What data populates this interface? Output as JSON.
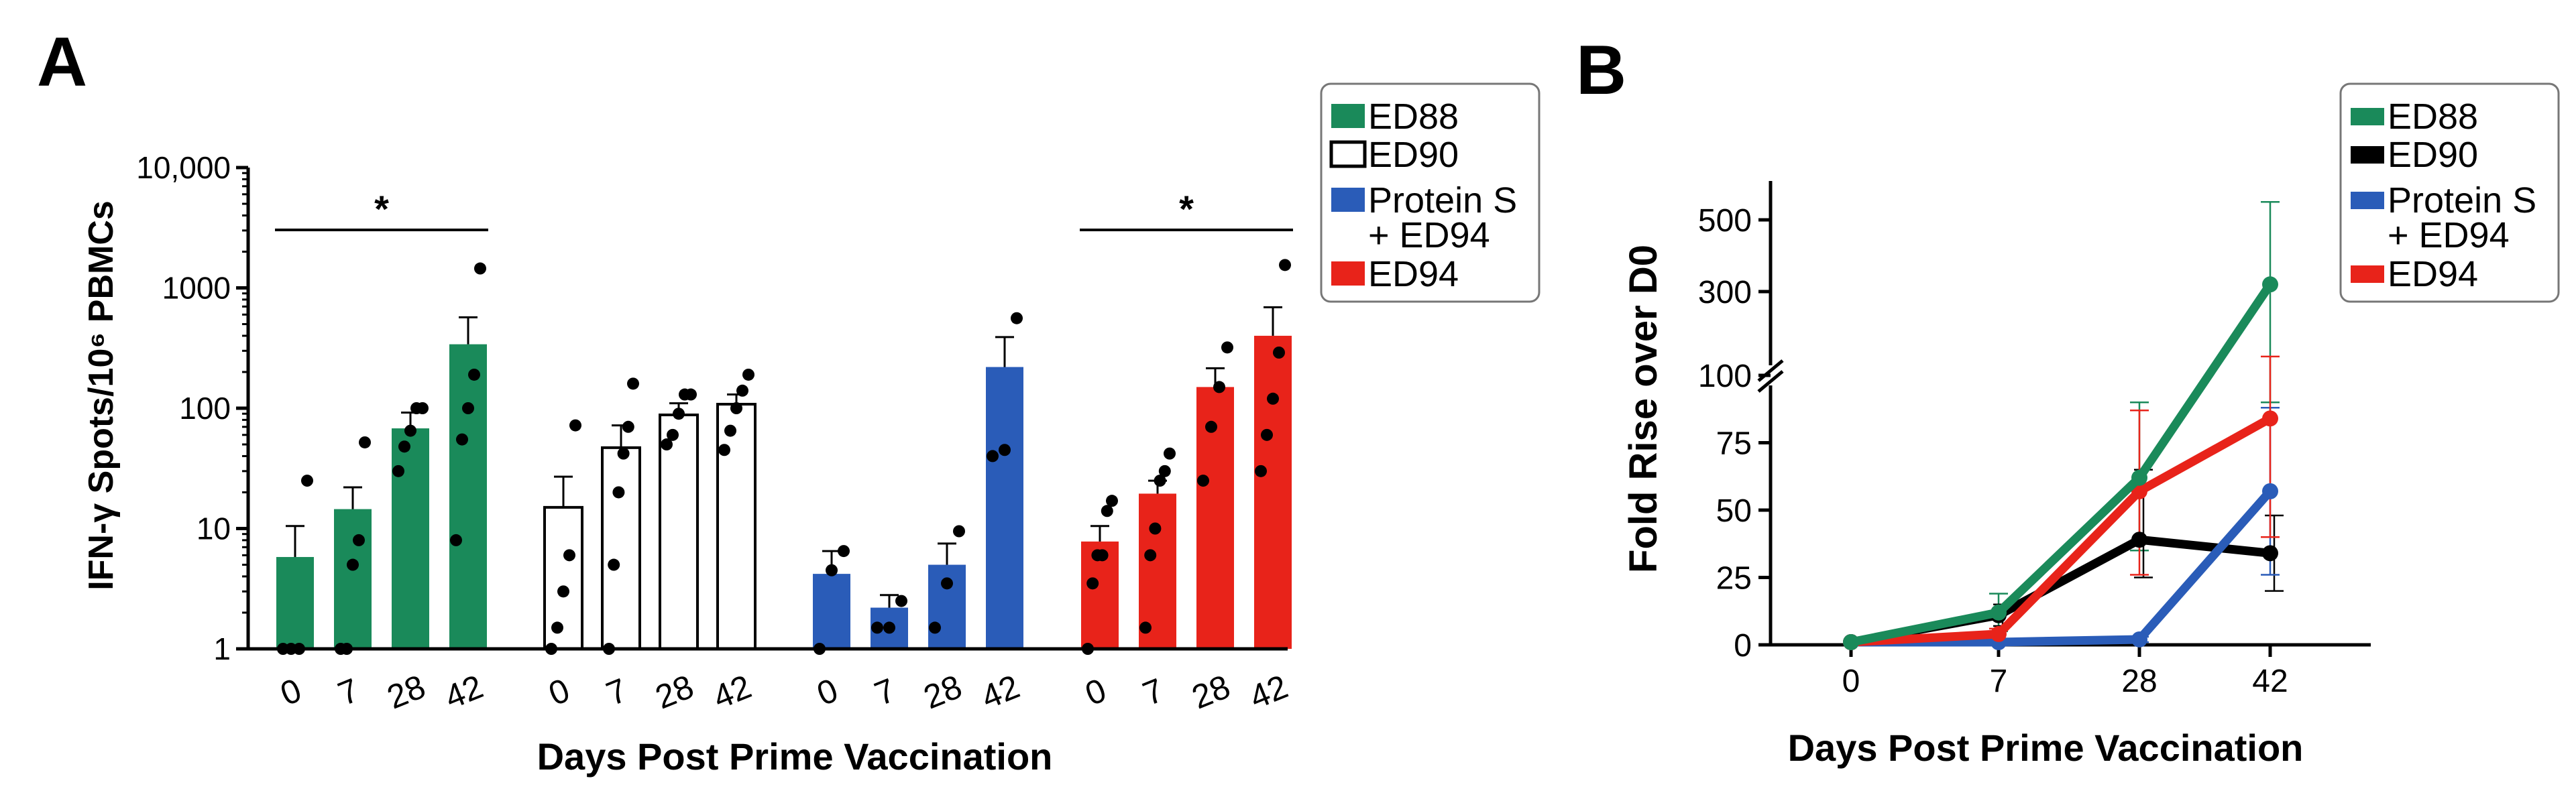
{
  "figure": {
    "panel_a_label": "A",
    "panel_b_label": "B",
    "legend_items": [
      {
        "label_lines": [
          "ED88"
        ],
        "color": "#1a8a5a",
        "fill": true
      },
      {
        "label_lines": [
          "ED90"
        ],
        "color": "#000000",
        "fill": false
      },
      {
        "label_lines": [
          "Protein S",
          "+ ED94"
        ],
        "color": "#2a5cb8",
        "fill": true
      },
      {
        "label_lines": [
          "ED94"
        ],
        "color": "#e8231a",
        "fill": true
      }
    ],
    "legend_items_b": [
      {
        "label_lines": [
          "ED88"
        ],
        "color": "#1a8a5a"
      },
      {
        "label_lines": [
          "ED90"
        ],
        "color": "#000000"
      },
      {
        "label_lines": [
          "Protein S",
          "+ ED94"
        ],
        "color": "#2a5cb8"
      },
      {
        "label_lines": [
          "ED94"
        ],
        "color": "#e8231a"
      }
    ]
  },
  "chart_data": [
    {
      "panel": "A",
      "type": "bar",
      "scale": "log",
      "ylabel": "IFN-γ Spots/10⁶ PBMCs",
      "xlabel": "Days Post Prime Vaccination",
      "ylim": [
        1,
        10000
      ],
      "yticks": [
        1,
        10,
        100,
        1000,
        10000
      ],
      "ytick_labels": [
        "1",
        "10",
        "100",
        "1000",
        "10,000"
      ],
      "categories": [
        "0",
        "7",
        "28",
        "42"
      ],
      "significance": [
        {
          "group": "ED88",
          "from": "0",
          "to": "42",
          "label": "*"
        },
        {
          "group": "ED94",
          "from": "0",
          "to": "42",
          "label": "*"
        }
      ],
      "series": [
        {
          "name": "ED88",
          "color": "#1a8a5a",
          "fill": true,
          "values": [
            5.8,
            14.5,
            68,
            340
          ],
          "errors": [
            10.5,
            22,
            92,
            570
          ],
          "points": [
            [
              1,
              1,
              1,
              25
            ],
            [
              1,
              1,
              5,
              8,
              52
            ],
            [
              30,
              48,
              65,
              100,
              100
            ],
            [
              8,
              55,
              100,
              190,
              1450
            ]
          ]
        },
        {
          "name": "ED90",
          "color": "#000000",
          "fill": false,
          "values": [
            15,
            47,
            88,
            108
          ],
          "errors": [
            27,
            72,
            110,
            130
          ],
          "points": [
            [
              1,
              1.5,
              3,
              6,
              72
            ],
            [
              1,
              5,
              20,
              42,
              70,
              160
            ],
            [
              50,
              60,
              90,
              130,
              130
            ],
            [
              45,
              65,
              100,
              140,
              190
            ]
          ]
        },
        {
          "name": "Protein S + ED94",
          "color": "#2a5cb8",
          "fill": true,
          "values": [
            4.2,
            2.2,
            5.0,
            220
          ],
          "errors": [
            6.5,
            2.8,
            7.5,
            390
          ],
          "points": [
            [
              1,
              4.5,
              6.5
            ],
            [
              1.5,
              1.5,
              2.5
            ],
            [
              1.5,
              3.5,
              9.5
            ],
            [
              40,
              45,
              560
            ]
          ]
        },
        {
          "name": "ED94",
          "color": "#e8231a",
          "fill": true,
          "values": [
            7.8,
            19.5,
            150,
            400
          ],
          "errors": [
            10.5,
            25,
            215,
            690
          ],
          "points": [
            [
              1,
              3.5,
              6,
              6,
              14,
              17
            ],
            [
              1.5,
              6,
              10,
              25,
              30,
              42
            ],
            [
              25,
              70,
              150,
              320
            ],
            [
              30,
              60,
              120,
              290,
              1550
            ]
          ]
        }
      ]
    },
    {
      "panel": "B",
      "type": "line",
      "ylabel": "Fold Rise over D0",
      "xlabel": "Days Post Prime Vaccination",
      "x": [
        "0",
        "7",
        "28",
        "42"
      ],
      "yticks_lower": [
        0,
        25,
        50,
        75,
        100
      ],
      "ytick_labels_lower": [
        "0",
        "25",
        "50",
        "75",
        "100"
      ],
      "yticks_upper": [
        300,
        500
      ],
      "ytick_labels_upper": [
        "300",
        "500"
      ],
      "axis_break": [
        100,
        200
      ],
      "series": [
        {
          "name": "ED88",
          "color": "#1a8a5a",
          "values": [
            1,
            12,
            62,
            320
          ],
          "err_hi": [
            1,
            19,
            90,
            550
          ],
          "err_lo": [
            1,
            5,
            35,
            90
          ]
        },
        {
          "name": "ED90",
          "color": "#000000",
          "values": [
            1,
            11,
            39,
            34
          ],
          "err_hi": [
            1,
            15,
            65,
            48
          ],
          "err_lo": [
            1,
            7,
            25,
            20
          ]
        },
        {
          "name": "Protein S + ED94",
          "color": "#2a5cb8",
          "values": [
            1,
            1,
            2,
            57
          ],
          "err_hi": [
            1,
            1,
            3,
            88
          ],
          "err_lo": [
            1,
            1,
            1,
            26
          ]
        },
        {
          "name": "ED94",
          "color": "#e8231a",
          "values": [
            1,
            4,
            57,
            84
          ],
          "err_hi": [
            1,
            6,
            87,
            145
          ],
          "err_lo": [
            1,
            2,
            26,
            40
          ]
        }
      ]
    }
  ]
}
